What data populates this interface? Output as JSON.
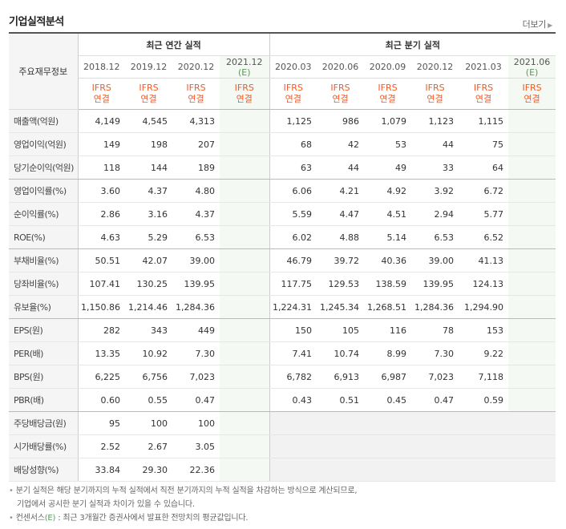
{
  "title": "기업실적분석",
  "more_label": "더보기",
  "header": {
    "row_label": "주요재무정보",
    "annual_group": "최근 연간 실적",
    "quarter_group": "최근 분기 실적",
    "annual_periods": [
      "2018.12",
      "2019.12",
      "2020.12",
      "2021.12"
    ],
    "quarter_periods": [
      "2020.03",
      "2020.06",
      "2020.09",
      "2020.12",
      "2021.03",
      "2021.06"
    ],
    "estimate_mark": "(E)",
    "ifrs": "IFRS",
    "consolidated": "연결"
  },
  "rows": [
    {
      "label": "매출액(억원)",
      "annual": [
        "4,149",
        "4,545",
        "4,313",
        ""
      ],
      "quarter": [
        "1,125",
        "986",
        "1,079",
        "1,123",
        "1,115",
        ""
      ]
    },
    {
      "label": "영업이익(억원)",
      "annual": [
        "149",
        "198",
        "207",
        ""
      ],
      "quarter": [
        "68",
        "42",
        "53",
        "44",
        "75",
        ""
      ]
    },
    {
      "label": "당기순이익(억원)",
      "annual": [
        "118",
        "144",
        "189",
        ""
      ],
      "quarter": [
        "63",
        "44",
        "49",
        "33",
        "64",
        ""
      ]
    },
    {
      "label": "영업이익률(%)",
      "annual": [
        "3.60",
        "4.37",
        "4.80",
        ""
      ],
      "quarter": [
        "6.06",
        "4.21",
        "4.92",
        "3.92",
        "6.72",
        ""
      ]
    },
    {
      "label": "순이익률(%)",
      "annual": [
        "2.86",
        "3.16",
        "4.37",
        ""
      ],
      "quarter": [
        "5.59",
        "4.47",
        "4.51",
        "2.94",
        "5.77",
        ""
      ]
    },
    {
      "label": "ROE(%)",
      "annual": [
        "4.63",
        "5.29",
        "6.53",
        ""
      ],
      "quarter": [
        "6.02",
        "4.88",
        "5.14",
        "6.53",
        "6.52",
        ""
      ]
    },
    {
      "label": "부채비율(%)",
      "annual": [
        "50.51",
        "42.07",
        "39.00",
        ""
      ],
      "quarter": [
        "46.79",
        "39.72",
        "40.36",
        "39.00",
        "41.13",
        ""
      ]
    },
    {
      "label": "당좌비율(%)",
      "annual": [
        "107.41",
        "130.25",
        "139.95",
        ""
      ],
      "quarter": [
        "117.75",
        "129.53",
        "138.59",
        "139.95",
        "124.13",
        ""
      ]
    },
    {
      "label": "유보율(%)",
      "annual": [
        "1,150.86",
        "1,214.46",
        "1,284.36",
        ""
      ],
      "quarter": [
        "1,224.31",
        "1,245.34",
        "1,268.51",
        "1,284.36",
        "1,294.90",
        ""
      ]
    },
    {
      "label": "EPS(원)",
      "annual": [
        "282",
        "343",
        "449",
        ""
      ],
      "quarter": [
        "150",
        "105",
        "116",
        "78",
        "153",
        ""
      ]
    },
    {
      "label": "PER(배)",
      "annual": [
        "13.35",
        "10.92",
        "7.30",
        ""
      ],
      "quarter": [
        "7.41",
        "10.74",
        "8.99",
        "7.30",
        "9.22",
        ""
      ]
    },
    {
      "label": "BPS(원)",
      "annual": [
        "6,225",
        "6,756",
        "7,023",
        ""
      ],
      "quarter": [
        "6,782",
        "6,913",
        "6,987",
        "7,023",
        "7,118",
        ""
      ]
    },
    {
      "label": "PBR(배)",
      "annual": [
        "0.60",
        "0.55",
        "0.47",
        ""
      ],
      "quarter": [
        "0.43",
        "0.51",
        "0.45",
        "0.47",
        "0.59",
        ""
      ]
    },
    {
      "label": "주당배당금(원)",
      "annual": [
        "95",
        "100",
        "100",
        ""
      ],
      "quarter": null
    },
    {
      "label": "시가배당률(%)",
      "annual": [
        "2.52",
        "2.67",
        "3.05",
        ""
      ],
      "quarter": null
    },
    {
      "label": "배당성향(%)",
      "annual": [
        "33.84",
        "29.30",
        "22.36",
        ""
      ],
      "quarter": null
    }
  ],
  "notes": {
    "line1": "분기 실적은 해당 분기까지의 누적 실적에서 직전 분기까지의 누적 실적을 차감하는 방식으로 계산되므로,",
    "line2": "기업에서 공시한 분기 실적과 차이가 있을 수 있습니다.",
    "line3_prefix": "컨센서스",
    "line3_mark": "(E)",
    "line3_rest": ": 최근 3개월간 증권사에서 발표한 전망치의 평균값입니다."
  }
}
